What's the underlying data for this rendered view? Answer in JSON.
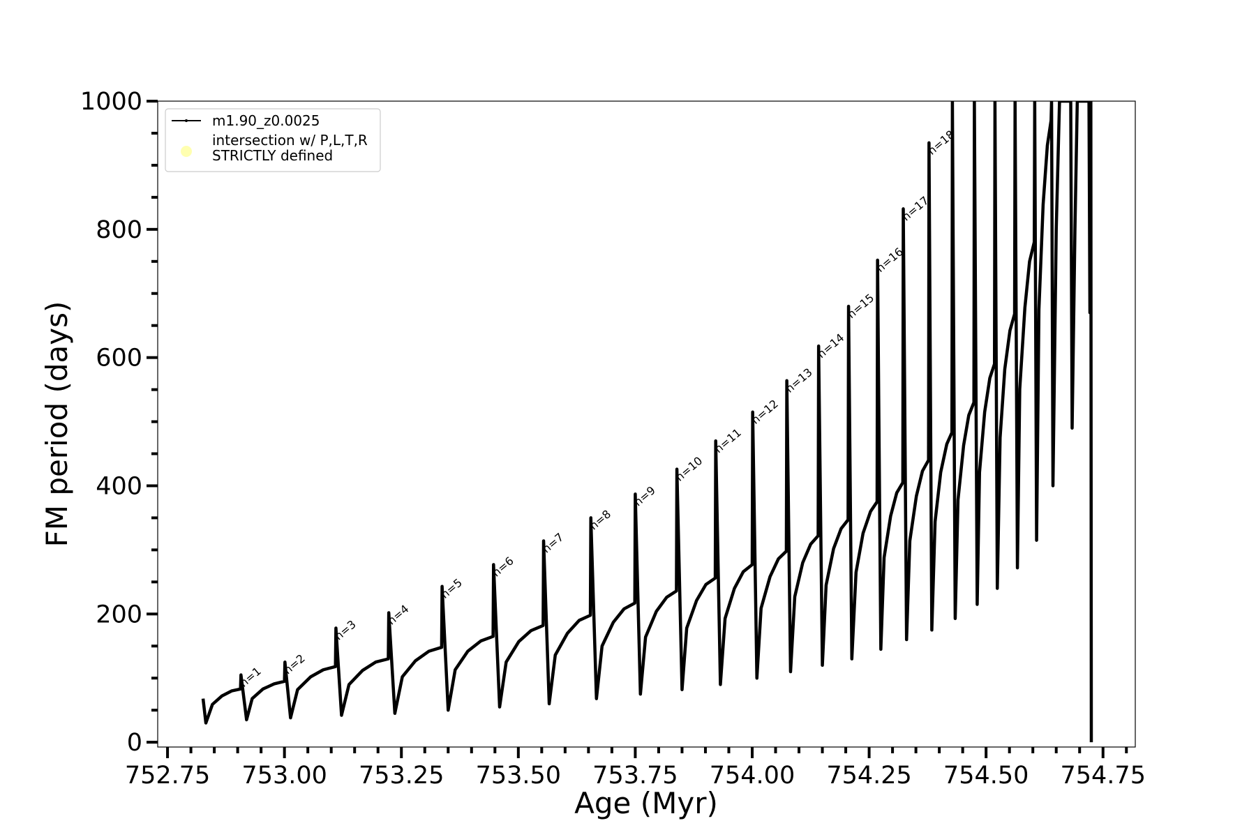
{
  "chart_data": {
    "type": "line",
    "xlabel": "Age (Myr)",
    "ylabel": "FM period (days)",
    "xlim": [
      752.729,
      754.819
    ],
    "ylim": [
      -7.5,
      1000
    ],
    "xticks": [
      752.75,
      {
        "value": 753,
        "label": "753.00"
      },
      753.25,
      {
        "value": 753.5,
        "label": "753.50"
      },
      753.75,
      {
        "value": 754,
        "label": "754.00"
      },
      754.25,
      {
        "value": 754.5,
        "label": "754.50"
      },
      754.75
    ],
    "yticks": [
      0,
      200,
      400,
      600,
      800,
      1000
    ],
    "xminorticks": [
      752.8,
      752.85,
      752.9,
      752.95,
      753.05,
      753.1,
      753.15,
      753.2,
      753.3,
      753.35,
      753.4,
      753.45,
      753.55,
      753.6,
      753.65,
      753.7,
      753.8,
      753.85,
      753.9,
      753.95,
      754.05,
      754.1,
      754.15,
      754.2,
      754.3,
      754.35,
      754.4,
      754.45,
      754.55,
      754.6,
      754.65,
      754.7,
      754.8
    ],
    "yminorticks": [
      50,
      100,
      150,
      250,
      300,
      350,
      450,
      500,
      550,
      650,
      700,
      750,
      850,
      900,
      950
    ],
    "legend": "upper left",
    "series": [
      {
        "name": "m1.90_z0.0025",
        "color": "#000000",
        "x": [
          752.826,
          752.832,
          752.846,
          752.866,
          752.887,
          752.906,
          752.907,
          752.919,
          752.931,
          752.954,
          752.978,
          753.0,
          753.001,
          753.013,
          753.028,
          753.056,
          753.083,
          753.109,
          753.11,
          753.122,
          753.138,
          753.167,
          753.195,
          753.222,
          753.223,
          753.236,
          753.252,
          753.28,
          753.309,
          753.336,
          753.337,
          753.35,
          753.365,
          753.392,
          753.42,
          753.446,
          753.447,
          753.46,
          753.474,
          753.501,
          753.527,
          753.553,
          753.554,
          753.566,
          753.579,
          753.605,
          753.63,
          753.654,
          753.655,
          753.667,
          753.679,
          753.703,
          753.726,
          753.749,
          753.75,
          753.761,
          753.772,
          753.795,
          753.817,
          753.838,
          753.839,
          753.85,
          753.86,
          753.881,
          753.901,
          753.921,
          753.922,
          753.932,
          753.942,
          753.962,
          753.981,
          754.0,
          754.001,
          754.01,
          754.019,
          754.038,
          754.056,
          754.073,
          754.074,
          754.082,
          754.091,
          754.108,
          754.125,
          754.141,
          754.142,
          754.15,
          754.158,
          754.174,
          754.19,
          754.205,
          754.206,
          754.213,
          754.222,
          754.237,
          754.253,
          754.267,
          754.268,
          754.275,
          754.282,
          754.296,
          754.309,
          754.322,
          754.323,
          754.33,
          754.337,
          754.351,
          754.364,
          754.377,
          754.378,
          754.384,
          754.391,
          754.403,
          754.416,
          754.427,
          754.428,
          754.434,
          754.44,
          754.452,
          754.463,
          754.474,
          754.475,
          754.481,
          754.486,
          754.497,
          754.508,
          754.518,
          754.519,
          754.524,
          754.53,
          754.54,
          754.551,
          754.561,
          754.562,
          754.567,
          754.572,
          754.583,
          754.593,
          754.603,
          754.604,
          754.608,
          754.613,
          754.622,
          754.631,
          754.639,
          754.64,
          754.643,
          754.65,
          754.657,
          754.681,
          754.684,
          754.69,
          754.695,
          754.72,
          754.722,
          754.724,
          754.725
        ],
        "values": [
          68,
          30,
          59,
          72,
          80,
          83,
          105,
          35,
          68,
          83,
          91,
          95,
          125,
          38,
          82,
          102,
          113,
          118,
          178,
          42,
          90,
          112,
          125,
          130,
          202,
          45,
          102,
          127,
          142,
          148,
          243,
          50,
          113,
          142,
          158,
          165,
          277,
          55,
          125,
          157,
          174,
          182,
          314,
          60,
          136,
          170,
          190,
          198,
          350,
          68,
          150,
          187,
          208,
          217,
          387,
          75,
          164,
          204,
          226,
          236,
          426,
          82,
          178,
          221,
          246,
          256,
          470,
          90,
          193,
          240,
          266,
          277,
          515,
          100,
          209,
          258,
          286,
          298,
          564,
          110,
          227,
          280,
          309,
          322,
          618,
          120,
          245,
          302,
          333,
          347,
          680,
          130,
          265,
          326,
          360,
          375,
          752,
          145,
          288,
          353,
          389,
          405,
          832,
          160,
          314,
          384,
          423,
          440,
          935,
          175,
          344,
          421,
          465,
          483,
          1000,
          193,
          378,
          463,
          510,
          530,
          1000,
          215,
          421,
          515,
          568,
          590,
          1000,
          240,
          475,
          582,
          642,
          668,
          1000,
          272,
          551,
          678,
          750,
          780,
          1000,
          315,
          675,
          839,
          931,
          970,
          1000,
          400,
          800,
          1000,
          1000,
          490,
          800,
          1000,
          1000,
          670,
          1000,
          0
        ]
      },
      {
        "name": "intersection w/ P,L,T,R\nSTRICTLY defined",
        "color": "#ffffb0",
        "x": [],
        "values": []
      }
    ],
    "annotations": [
      {
        "text": "n=1",
        "x": 752.907,
        "y": 105
      },
      {
        "text": "n=2",
        "x": 753.001,
        "y": 125
      },
      {
        "text": "n=3",
        "x": 753.11,
        "y": 178
      },
      {
        "text": "n=4",
        "x": 753.223,
        "y": 202
      },
      {
        "text": "n=5",
        "x": 753.337,
        "y": 243
      },
      {
        "text": "n=6",
        "x": 753.447,
        "y": 277
      },
      {
        "text": "n=7",
        "x": 753.554,
        "y": 314
      },
      {
        "text": "n=8",
        "x": 753.655,
        "y": 350
      },
      {
        "text": "n=9",
        "x": 753.75,
        "y": 387
      },
      {
        "text": "n=10",
        "x": 753.839,
        "y": 426
      },
      {
        "text": "n=11",
        "x": 753.922,
        "y": 470
      },
      {
        "text": "n=12",
        "x": 754.001,
        "y": 515
      },
      {
        "text": "n=13",
        "x": 754.074,
        "y": 564
      },
      {
        "text": "n=14",
        "x": 754.142,
        "y": 618
      },
      {
        "text": "n=15",
        "x": 754.206,
        "y": 680
      },
      {
        "text": "n=16",
        "x": 754.268,
        "y": 752
      },
      {
        "text": "n=17",
        "x": 754.323,
        "y": 832
      },
      {
        "text": "n=18",
        "x": 754.378,
        "y": 935
      }
    ]
  }
}
